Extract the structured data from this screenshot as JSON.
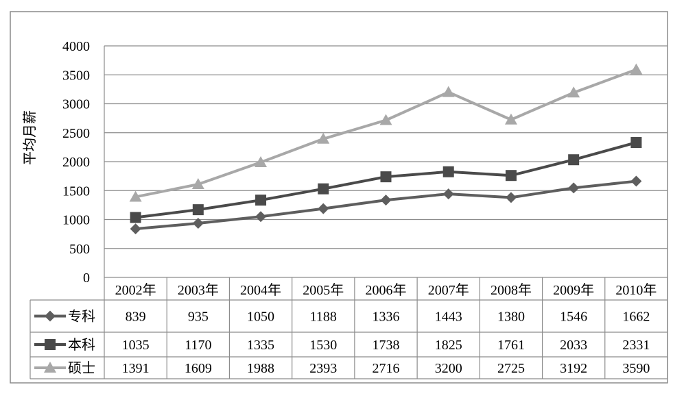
{
  "chart_data": {
    "type": "line",
    "ylabel": "平均月薪",
    "ylim": [
      0,
      4000
    ],
    "yticks": [
      "0",
      "500",
      "1000",
      "1500",
      "2000",
      "2500",
      "3000",
      "3500",
      "4000"
    ],
    "grid": true,
    "legend": "data-table-left",
    "categories": [
      "2002年",
      "2003年",
      "2004年",
      "2005年",
      "2006年",
      "2007年",
      "2008年",
      "2009年",
      "2010年"
    ],
    "series": [
      {
        "name": "专科",
        "marker": "diamond",
        "color": "#5e5e5e",
        "values": [
          839,
          935,
          1050,
          1188,
          1336,
          1443,
          1380,
          1546,
          1662
        ]
      },
      {
        "name": "本科",
        "marker": "square",
        "color": "#4a4a4a",
        "values": [
          1035,
          1170,
          1335,
          1530,
          1738,
          1825,
          1761,
          2033,
          2331
        ]
      },
      {
        "name": "硕士",
        "marker": "triangle",
        "color": "#a8a8a8",
        "values": [
          1391,
          1609,
          1988,
          2393,
          2716,
          3200,
          2725,
          3192,
          3590
        ]
      }
    ]
  }
}
